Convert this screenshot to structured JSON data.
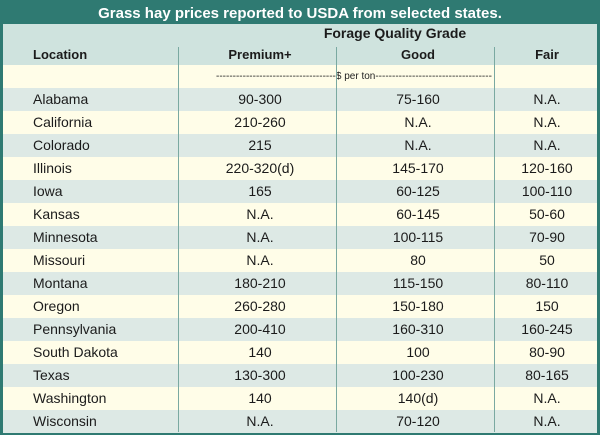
{
  "title": "Grass hay prices reported to USDA from selected states.",
  "grade_label": "Forage Quality Grade",
  "columns": {
    "location": "Location",
    "premium": "Premium+",
    "good": "Good",
    "fair": "Fair"
  },
  "unit_label": "------------------------------------$ per ton-----------------------------------",
  "rows": [
    {
      "location": "Alabama",
      "premium": "90-300",
      "good": "75-160",
      "fair": "N.A."
    },
    {
      "location": "California",
      "premium": "210-260",
      "good": "N.A.",
      "fair": "N.A."
    },
    {
      "location": "Colorado",
      "premium": "215",
      "good": "N.A.",
      "fair": "N.A."
    },
    {
      "location": "Illinois",
      "premium": "220-320(d)",
      "good": "145-170",
      "fair": "120-160"
    },
    {
      "location": "Iowa",
      "premium": "165",
      "good": "60-125",
      "fair": "100-110"
    },
    {
      "location": "Kansas",
      "premium": "N.A.",
      "good": "60-145",
      "fair": "50-60"
    },
    {
      "location": "Minnesota",
      "premium": "N.A.",
      "good": "100-115",
      "fair": "70-90"
    },
    {
      "location": "Missouri",
      "premium": "N.A.",
      "good": "80",
      "fair": "50"
    },
    {
      "location": "Montana",
      "premium": "180-210",
      "good": "115-150",
      "fair": "80-110"
    },
    {
      "location": "Oregon",
      "premium": "260-280",
      "good": "150-180",
      "fair": "150"
    },
    {
      "location": "Pennsylvania",
      "premium": "200-410",
      "good": "160-310",
      "fair": "160-245"
    },
    {
      "location": "South Dakota",
      "premium": "140",
      "good": "100",
      "fair": "80-90"
    },
    {
      "location": "Texas",
      "premium": "130-300",
      "good": "100-230",
      "fair": "80-165"
    },
    {
      "location": "Washington",
      "premium": "140",
      "good": "140(d)",
      "fair": "N.A."
    },
    {
      "location": "Wisconsin",
      "premium": "N.A.",
      "good": "70-120",
      "fair": "N.A."
    }
  ],
  "colors": {
    "header_bar": "#2f7a72",
    "band": "#dde9e5",
    "header_band": "#cfe3de",
    "paper": "#fffde8"
  }
}
